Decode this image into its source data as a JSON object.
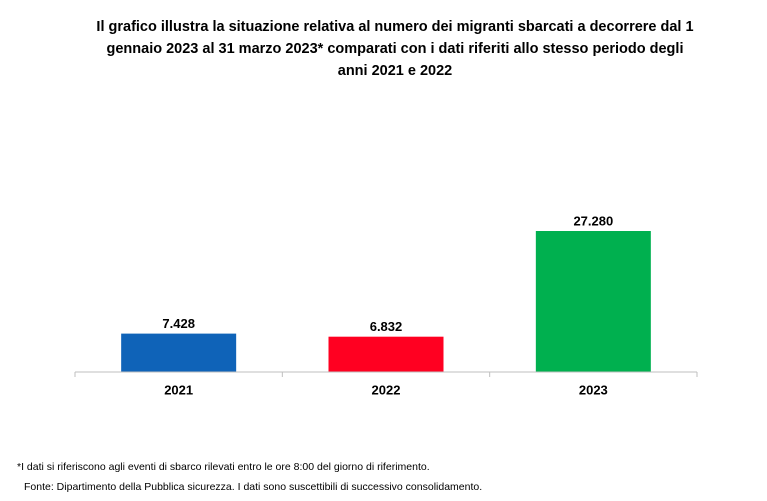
{
  "chart_data": {
    "type": "bar",
    "title": [
      "Il grafico illustra la situazione relativa al numero dei migranti sbarcati a decorrere dal 1",
      "gennaio 2023 al 31 marzo 2023* comparati con i dati riferiti allo stesso periodo degli",
      "anni 2021 e 2022"
    ],
    "categories": [
      "2021",
      "2022",
      "2023"
    ],
    "values": [
      7428,
      6832,
      27280
    ],
    "value_labels": [
      "7.428",
      "6.832",
      "27.280"
    ],
    "colors": [
      "#0f63b8",
      "#ff0021",
      "#00b04f"
    ],
    "notes": [
      "*I dati si riferiscono agli eventi di sbarco rilevati entro le ore 8:00 del giorno di riferimento.",
      "Fonte: Dipartimento della Pubblica sicurezza. I dati sono suscettibili di successivo consolidamento."
    ]
  }
}
